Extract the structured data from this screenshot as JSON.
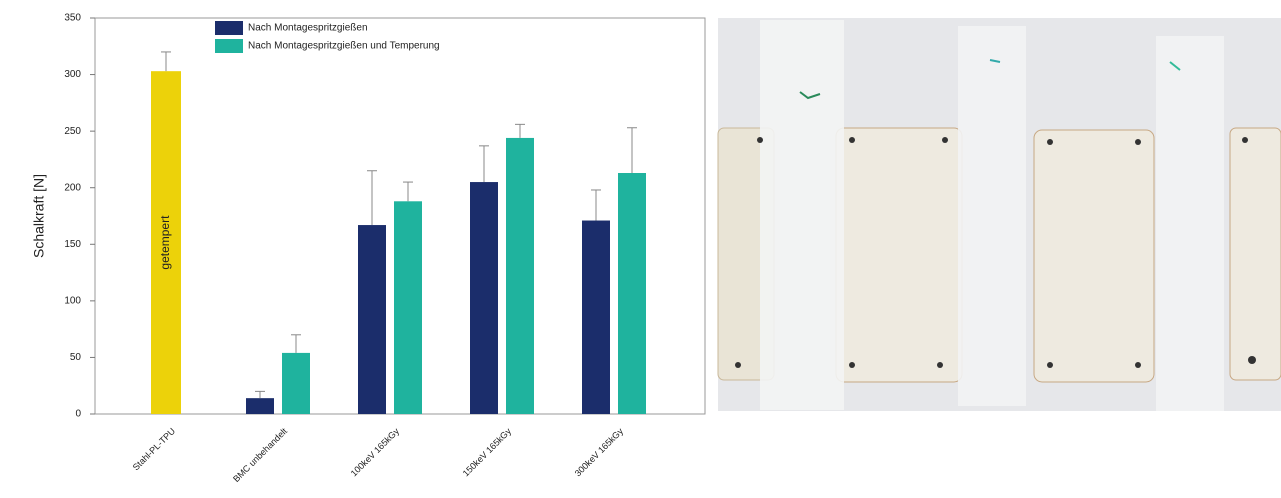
{
  "chart_data": {
    "type": "bar",
    "y_label": "Schalkraft [N]",
    "categories": [
      "Stahl-PL-TPU",
      "BMC unbehandelt",
      "100keV 165kGy",
      "150keV 165kGy",
      "300keV 165kGy"
    ],
    "reference_bar": {
      "label": "getempert",
      "value": 303,
      "error": 17,
      "color": "#ecd20a"
    },
    "series": [
      {
        "name": "Nach Montagespritzgießen",
        "color": "#1b2d6b",
        "values": [
          null,
          14,
          167,
          205,
          171
        ],
        "errors": [
          null,
          6,
          48,
          32,
          27
        ]
      },
      {
        "name": "Nach Montagespritzgießen und Temperung",
        "color": "#1fb39e",
        "values": [
          null,
          54,
          188,
          244,
          213
        ],
        "errors": [
          null,
          16,
          17,
          12,
          40
        ]
      }
    ],
    "ylim": [
      0,
      350
    ],
    "yticks": [
      0,
      50,
      100,
      150,
      200,
      250,
      300,
      350
    ]
  }
}
